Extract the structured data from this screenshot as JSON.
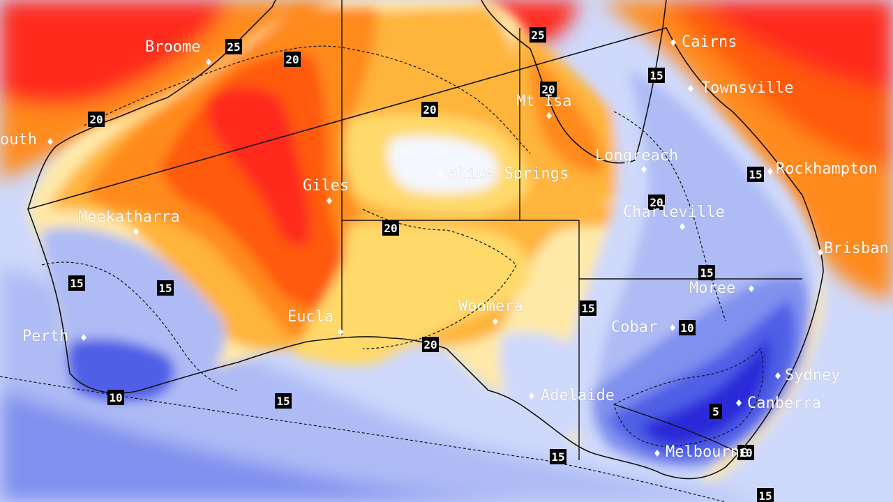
{
  "map": {
    "colors": {
      "hot_red": "#ff2a1a",
      "red_orange": "#ff5a10",
      "orange": "#ff8a1a",
      "light_orange": "#ffb43a",
      "yellow": "#ffd96b",
      "pale_yellow": "#ffe9a8",
      "white": "#f4f7ff",
      "pale_blue": "#cfd9fb",
      "light_blue": "#aebbf5",
      "mid_blue": "#7f90ee",
      "blue": "#4f5fe6",
      "deep_blue": "#2a2bd8",
      "contour": "#111111"
    },
    "cities": [
      {
        "id": "broome",
        "name": "Broome"
      },
      {
        "id": "cairns",
        "name": "Cairns"
      },
      {
        "id": "townsville",
        "name": "Townsville"
      },
      {
        "id": "mt-isa",
        "name": "Mt Isa"
      },
      {
        "id": "port-hedland",
        "name": "outh"
      },
      {
        "id": "alice-springs",
        "name": "Alice Springs"
      },
      {
        "id": "longreach",
        "name": "Longreach"
      },
      {
        "id": "rockhampton",
        "name": "Rockhampton"
      },
      {
        "id": "giles",
        "name": "Giles"
      },
      {
        "id": "charleville",
        "name": "Charleville"
      },
      {
        "id": "meekatharra",
        "name": "Meekatharra"
      },
      {
        "id": "brisbane",
        "name": "Brisban"
      },
      {
        "id": "moree",
        "name": "Moree"
      },
      {
        "id": "woomera",
        "name": "Woomera"
      },
      {
        "id": "cobar",
        "name": "Cobar"
      },
      {
        "id": "eucla",
        "name": "Eucla"
      },
      {
        "id": "perth",
        "name": "Perth"
      },
      {
        "id": "sydney",
        "name": "Sydney"
      },
      {
        "id": "adelaide",
        "name": "Adelaide"
      },
      {
        "id": "canberra",
        "name": "Canberra"
      },
      {
        "id": "melbourne",
        "name": "Melbourne"
      }
    ],
    "contour_labels": [
      {
        "id": "c25-broome",
        "value": "25"
      },
      {
        "id": "c20-kimberley",
        "value": "20"
      },
      {
        "id": "c25-gulf",
        "value": "25"
      },
      {
        "id": "c15-qld-coast",
        "value": "15"
      },
      {
        "id": "c20-mtisa",
        "value": "20"
      },
      {
        "id": "c20-nt",
        "value": "20"
      },
      {
        "id": "c20-pilbara",
        "value": "20"
      },
      {
        "id": "c15-rockhampton",
        "value": "15"
      },
      {
        "id": "c20-charleville",
        "value": "20"
      },
      {
        "id": "c20-sa-border",
        "value": "20"
      },
      {
        "id": "c15-wa-west",
        "value": "15"
      },
      {
        "id": "c15-wa-mid",
        "value": "15"
      },
      {
        "id": "c15-moree",
        "value": "15"
      },
      {
        "id": "c15-nsw-border",
        "value": "15"
      },
      {
        "id": "c10-cobar",
        "value": "10"
      },
      {
        "id": "c20-bight",
        "value": "20"
      },
      {
        "id": "c10-sw-wa",
        "value": "10"
      },
      {
        "id": "c15-southern-ocean",
        "value": "15"
      },
      {
        "id": "c5-vic",
        "value": "5"
      },
      {
        "id": "c15-sa-vic",
        "value": "15"
      },
      {
        "id": "c10-melbourne",
        "value": "10"
      },
      {
        "id": "c15-bass",
        "value": "15"
      }
    ]
  }
}
